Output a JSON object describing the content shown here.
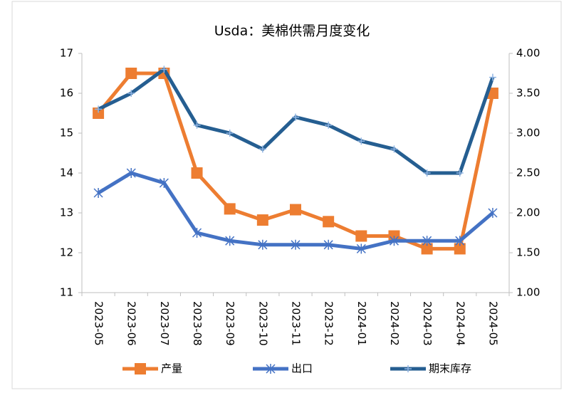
{
  "chart_data": {
    "type": "line",
    "title": "Usda：美棉供需月度变化",
    "categories": [
      "2023-05",
      "2023-06",
      "2023-07",
      "2023-08",
      "2023-09",
      "2023-10",
      "2023-11",
      "2023-12",
      "2024-01",
      "2024-02",
      "2024-03",
      "2024-04",
      "2024-05"
    ],
    "series": [
      {
        "name": "产量",
        "color": "#ed7d31",
        "marker": "square",
        "values": [
          15.5,
          16.5,
          16.5,
          14.0,
          13.1,
          12.82,
          13.08,
          12.78,
          12.42,
          12.42,
          12.1,
          12.1,
          16.0
        ]
      },
      {
        "name": "出口",
        "color": "#4472c4",
        "marker": "star",
        "values": [
          13.5,
          14.0,
          13.75,
          12.5,
          12.3,
          12.2,
          12.2,
          12.2,
          12.1,
          12.3,
          12.3,
          12.3,
          13.0
        ]
      },
      {
        "name": "期末库存",
        "color": "#255e91",
        "marker": "plus",
        "axis": "y2",
        "values": [
          3.3,
          3.5,
          3.8,
          3.1,
          3.0,
          2.8,
          3.2,
          3.1,
          2.9,
          2.8,
          2.5,
          2.5,
          3.7
        ]
      }
    ],
    "ylim": [
      11,
      17
    ],
    "yticks": [
      11,
      12,
      13,
      14,
      15,
      16,
      17
    ],
    "y2lim": [
      1,
      4
    ],
    "y2ticks": [
      {
        "value": 1,
        "label": "1.00"
      },
      {
        "value": 1.5,
        "label": "1.50"
      },
      {
        "value": 2,
        "label": "2.00"
      },
      {
        "value": 2.5,
        "label": "2.50"
      },
      {
        "value": 3,
        "label": "3.00"
      },
      {
        "value": 3.5,
        "label": "3.50"
      },
      {
        "value": 4,
        "label": "4.00"
      }
    ],
    "legend": "bottom"
  }
}
